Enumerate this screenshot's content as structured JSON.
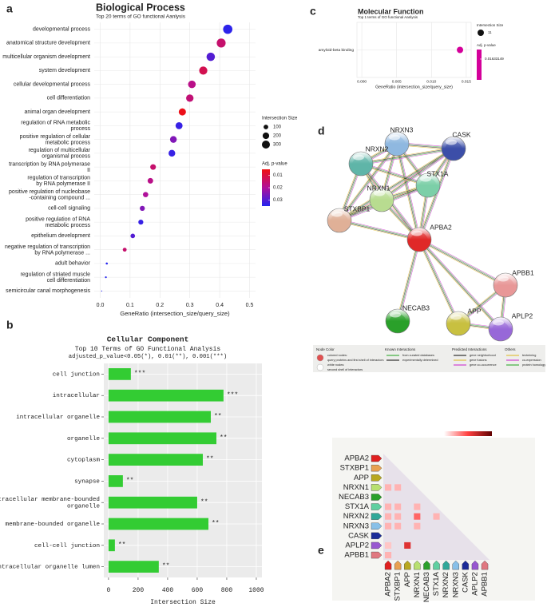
{
  "chart_data": [
    {
      "panel_label": "a",
      "type": "dot",
      "title": "Biological Process",
      "subtitle": "Top 20 terms of GO functional Aanlysis",
      "x_label": "GeneRatio (intersection_size/query_size)",
      "categories": [
        "developmental process",
        "anatomical structure development",
        "multicellular organism development",
        "system development",
        "cellular developmental process",
        "cell differentiation",
        "animal organ development",
        "regulation of RNA metabolic\nprocess",
        "positive regulation of cellular\nmetabolic process",
        "regulation of multicellular\norganismal process",
        "transcription by RNA polymerase\nII",
        "regulation of transcription\nby RNA polymerase II",
        "positive regulation of nucleobase\n-containing compound ...",
        "cell-cell signaling",
        "positive regulation of RNA\nmetabolic process",
        "epithelium development",
        "negative regulation of transcription\nby RNA polymerase ...",
        "adult behavior",
        "regulation of striated muscle\ncell differentiation",
        "semicircular canal morphogenesis"
      ],
      "values": [
        0.427,
        0.405,
        0.37,
        0.345,
        0.307,
        0.3,
        0.275,
        0.264,
        0.245,
        0.24,
        0.177,
        0.168,
        0.152,
        0.141,
        0.136,
        0.109,
        0.082,
        0.022,
        0.019,
        0.005
      ],
      "sizes": [
        400,
        370,
        330,
        310,
        270,
        260,
        240,
        230,
        210,
        210,
        150,
        145,
        130,
        120,
        115,
        95,
        70,
        20,
        15,
        5
      ],
      "p_values": [
        0.034,
        0.015,
        0.03,
        0.012,
        0.018,
        0.016,
        0.006,
        0.033,
        0.025,
        0.033,
        0.015,
        0.018,
        0.02,
        0.025,
        0.033,
        0.03,
        0.015,
        0.035,
        0.035,
        0.035
      ],
      "xlim": [
        -0.02,
        0.52
      ],
      "xticks": [
        {
          "value": 0,
          "label": "0.0"
        },
        0.1,
        0.2,
        0.3,
        0.4,
        0.5
      ],
      "grid": true,
      "size_legend_title": "Intersection Size",
      "size_legend": [
        100,
        200,
        300
      ],
      "color_legend_title": "Adj. p-value",
      "colorbar_ticks": [
        0.01,
        0.02,
        0.03
      ],
      "colorbar_lim": [
        0.005,
        0.035
      ],
      "colorbar_colors": [
        "#f01010",
        "#b0109a",
        "#2424f0"
      ]
    },
    {
      "panel_label": "b",
      "type": "bar",
      "title": "Cellular Component",
      "subtitle": "Top 10 Terms of GO Functional Analysis",
      "note": "adjusted_p_value<0.05(*), 0.01(**), 0.001(***)",
      "x_label": "Intersection Size",
      "categories": [
        "cell junction",
        "intracellular",
        "intracellular organelle",
        "organelle",
        "cytoplasm",
        "synapse",
        "intracellular membrane-bounded\norganelle",
        "membrane-bounded organelle",
        "cell-cell junction",
        "intracellular organelle lumen"
      ],
      "values": [
        151,
        778,
        692,
        730,
        638,
        97,
        600,
        676,
        43,
        340
      ],
      "significance": [
        "***",
        "***",
        "**",
        "**",
        "**",
        "**",
        "**",
        "**",
        "**",
        "**"
      ],
      "color": "#33cc33",
      "significance_color": "#ff3333",
      "xlim": [
        -32,
        1038
      ],
      "xticks": [
        0,
        200,
        400,
        600,
        800,
        1000
      ],
      "grid": true
    },
    {
      "panel_label": "c",
      "type": "dot",
      "title": "Molecular Function",
      "subtitle": "Top 1 terms of GO functional Aanlysis",
      "x_label": "GeneRatio (intersection_size/query_size)",
      "categories": [
        "amyloid-beta binding"
      ],
      "values": [
        0.0141
      ],
      "sizes": [
        11
      ],
      "p_values": [
        0.01633149
      ],
      "xlim": [
        -0.0007,
        0.0157
      ],
      "xticks": [
        {
          "value": 0,
          "label": "0.000"
        },
        {
          "value": 0.005,
          "label": "0.005"
        },
        {
          "value": 0.01,
          "label": "0.010"
        },
        {
          "value": 0.015,
          "label": "0.015"
        }
      ],
      "grid": true,
      "size_legend_title": "Intersection Size",
      "size_legend": [
        11
      ],
      "color_legend_title": "Adj. p-value",
      "colorbar_ticks": [
        0.01633149
      ],
      "colorbar_lim": [
        0.0163,
        0.0164
      ],
      "colorbar_colors": [
        "#d4009a"
      ]
    },
    {
      "panel_label": "d",
      "type": "network",
      "nodes": [
        {
          "name": "NRXN3",
          "color": "#8fb8e0"
        },
        {
          "name": "CASK",
          "color": "#3c4fa8"
        },
        {
          "name": "NRXN2",
          "color": "#5fb5a8"
        },
        {
          "name": "STX1A",
          "color": "#7ccfa8"
        },
        {
          "name": "NRXN1",
          "color": "#b8dc90"
        },
        {
          "name": "STXBP1",
          "color": "#e0b098"
        },
        {
          "name": "APBA2",
          "color": "#e02828"
        },
        {
          "name": "APBB1",
          "color": "#e89898"
        },
        {
          "name": "NECAB3",
          "color": "#2aa02a"
        },
        {
          "name": "APP",
          "color": "#c8c040"
        },
        {
          "name": "APLP2",
          "color": "#9868d8"
        }
      ],
      "edges": [
        [
          0,
          1
        ],
        [
          0,
          2
        ],
        [
          0,
          3
        ],
        [
          0,
          4
        ],
        [
          0,
          5
        ],
        [
          0,
          6
        ],
        [
          1,
          2
        ],
        [
          1,
          3
        ],
        [
          1,
          4
        ],
        [
          1,
          5
        ],
        [
          1,
          6
        ],
        [
          2,
          3
        ],
        [
          2,
          4
        ],
        [
          2,
          5
        ],
        [
          2,
          6
        ],
        [
          3,
          4
        ],
        [
          3,
          5
        ],
        [
          3,
          6
        ],
        [
          4,
          5
        ],
        [
          4,
          6
        ],
        [
          5,
          6
        ],
        [
          6,
          7
        ],
        [
          6,
          8
        ],
        [
          6,
          9
        ],
        [
          6,
          10
        ],
        [
          7,
          9
        ],
        [
          7,
          10
        ],
        [
          9,
          10
        ]
      ],
      "legend": [
        {
          "title": "Node Color",
          "items": [
            "colored nodes:",
            "query proteins and first shell of interactors",
            "white nodes:",
            "second shell of interactors"
          ]
        },
        {
          "title": "Known Interactions",
          "items": [
            "from curated databases",
            "experimentally determined"
          ]
        },
        {
          "title": "Predicted Interactions",
          "items": [
            "gene neighborhood",
            "gene fusions",
            "gene co-occurrence"
          ]
        },
        {
          "title": "Others",
          "items": [
            "textmining",
            "co-expression",
            "protein homology"
          ]
        }
      ]
    },
    {
      "panel_label": "e",
      "type": "heatmap",
      "labels": [
        "APBA2",
        "STXBP1",
        "APP",
        "NRXN1",
        "NECAB3",
        "STX1A",
        "NRXN2",
        "NRXN3",
        "CASK",
        "APLP2",
        "APBB1"
      ],
      "colors": [
        "#e02020",
        "#e8a050",
        "#b8a820",
        "#b8e070",
        "#2aa02a",
        "#60d0a0",
        "#30a898",
        "#88c0e8",
        "#1c2c98",
        "#9858d0",
        "#e07880"
      ],
      "cells": [
        [
          3,
          0,
          0.2
        ],
        [
          3,
          1,
          0.2
        ],
        [
          5,
          0,
          0.2
        ],
        [
          5,
          1,
          0.2
        ],
        [
          5,
          3,
          0.2
        ],
        [
          6,
          0,
          0.2
        ],
        [
          6,
          1,
          0.2
        ],
        [
          6,
          3,
          0.4
        ],
        [
          6,
          5,
          0.2
        ],
        [
          7,
          0,
          0.2
        ],
        [
          7,
          1,
          0.2
        ],
        [
          7,
          3,
          0.2
        ],
        [
          9,
          0,
          0.15
        ],
        [
          9,
          2,
          0.6
        ],
        [
          10,
          0,
          0.2
        ]
      ],
      "colorbar_lim": [
        0,
        1
      ],
      "colorbar_colors": [
        "#ffffff",
        "#ff4040",
        "#600000"
      ]
    }
  ]
}
